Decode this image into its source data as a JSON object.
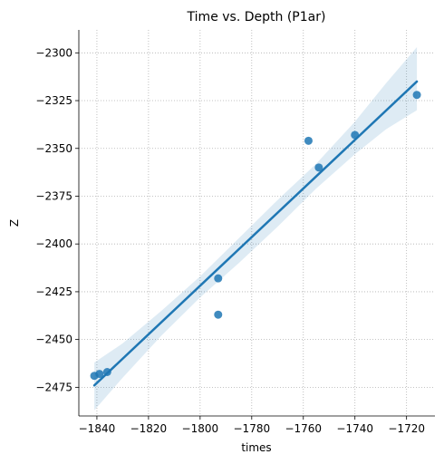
{
  "chart_data": {
    "type": "scatter",
    "title": "Time vs. Depth (P1ar)",
    "xlabel": "times",
    "ylabel": "Z",
    "xlim": [
      -1847,
      -1709
    ],
    "ylim": [
      -2490,
      -2288
    ],
    "xticks": [
      -1840,
      -1820,
      -1800,
      -1780,
      -1760,
      -1740,
      -1720
    ],
    "yticks": [
      -2300,
      -2325,
      -2350,
      -2375,
      -2400,
      -2425,
      -2450,
      -2475
    ],
    "grid": true,
    "points": [
      {
        "x": -1841,
        "y": -2469
      },
      {
        "x": -1839,
        "y": -2468
      },
      {
        "x": -1836,
        "y": -2467
      },
      {
        "x": -1793,
        "y": -2418
      },
      {
        "x": -1793,
        "y": -2437
      },
      {
        "x": -1758,
        "y": -2346
      },
      {
        "x": -1754,
        "y": -2360
      },
      {
        "x": -1740,
        "y": -2343
      },
      {
        "x": -1716,
        "y": -2322
      }
    ],
    "regression": {
      "x": [
        -1841,
        -1716
      ],
      "y": [
        -2474,
        -2315
      ]
    },
    "confidence_band": {
      "x": [
        -1841,
        -1830,
        -1815,
        -1800,
        -1785,
        -1770,
        -1755,
        -1740,
        -1728,
        -1716
      ],
      "upper": [
        -2462,
        -2452,
        -2435,
        -2417,
        -2397,
        -2377,
        -2358,
        -2336,
        -2316,
        -2297
      ],
      "lower": [
        -2487,
        -2470,
        -2448,
        -2428,
        -2410,
        -2391,
        -2371,
        -2353,
        -2340,
        -2330
      ]
    },
    "colors": {
      "points": "#1f77b4",
      "line": "#1f77b4",
      "band": "#1f77b4"
    }
  }
}
